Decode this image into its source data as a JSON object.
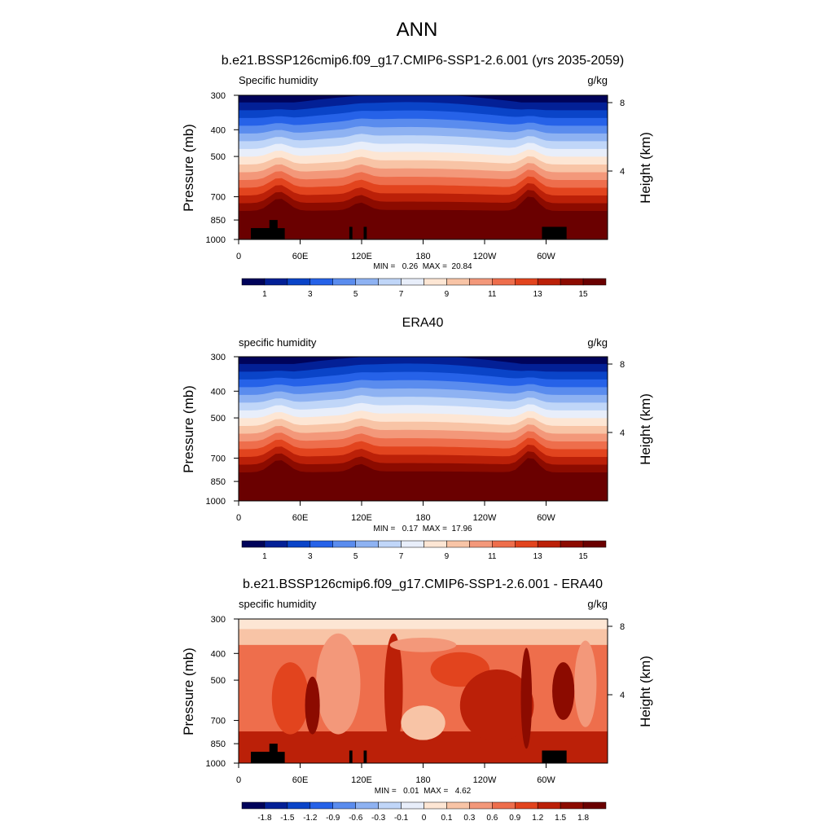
{
  "figure": {
    "title": "ANN"
  },
  "chart_data": [
    {
      "type": "heatmap",
      "title": "b.e21.BSSP126cmip6.f09_g17.CMIP6-SSP1-2.6.001 (yrs 2035-2059)",
      "variable_label": "Specific humidity",
      "units": "g/kg",
      "ylabel": "Pressure (mb)",
      "ylabel_right": "Height (km)",
      "x_ticks": [
        "0",
        "60E",
        "120E",
        "180",
        "120W",
        "60W"
      ],
      "x_tick_values": [
        0,
        60,
        120,
        180,
        240,
        300
      ],
      "xlim": [
        0,
        360
      ],
      "y_ticks": [
        "300",
        "400",
        "500",
        "700",
        "850",
        "1000"
      ],
      "y_tick_values": [
        300,
        400,
        500,
        700,
        850,
        1000
      ],
      "ylim": [
        1000,
        300
      ],
      "y_scale": "log",
      "height_ticks": [
        "8",
        "4"
      ],
      "height_tick_values": [
        8,
        4
      ],
      "stats": "MIN =   0.26  MAX =  20.84",
      "min": 0.26,
      "max": 20.84,
      "colorbar_labels": [
        "1",
        "3",
        "5",
        "7",
        "9",
        "11",
        "13",
        "15"
      ],
      "colorbar_levels": [
        1,
        2,
        3,
        4,
        5,
        6,
        7,
        8,
        9,
        10,
        11,
        12,
        13,
        14,
        15
      ],
      "colorbar_label_every": 2,
      "colormap": "blue-to-red"
    },
    {
      "type": "heatmap",
      "title": "ERA40",
      "variable_label": "specific humidity",
      "units": "g/kg",
      "ylabel": "Pressure (mb)",
      "ylabel_right": "Height (km)",
      "x_ticks": [
        "0",
        "60E",
        "120E",
        "180",
        "120W",
        "60W"
      ],
      "x_tick_values": [
        0,
        60,
        120,
        180,
        240,
        300
      ],
      "xlim": [
        0,
        360
      ],
      "y_ticks": [
        "300",
        "400",
        "500",
        "700",
        "850",
        "1000"
      ],
      "y_tick_values": [
        300,
        400,
        500,
        700,
        850,
        1000
      ],
      "ylim": [
        1000,
        300
      ],
      "y_scale": "log",
      "height_ticks": [
        "8",
        "4"
      ],
      "height_tick_values": [
        8,
        4
      ],
      "stats": "MIN =   0.17  MAX =  17.96",
      "min": 0.17,
      "max": 17.96,
      "colorbar_labels": [
        "1",
        "3",
        "5",
        "7",
        "9",
        "11",
        "13",
        "15"
      ],
      "colorbar_levels": [
        1,
        2,
        3,
        4,
        5,
        6,
        7,
        8,
        9,
        10,
        11,
        12,
        13,
        14,
        15
      ],
      "colorbar_label_every": 2,
      "colormap": "blue-to-red"
    },
    {
      "type": "heatmap",
      "title": "b.e21.BSSP126cmip6.f09_g17.CMIP6-SSP1-2.6.001 - ERA40",
      "variable_label": "specific humidity",
      "units": "g/kg",
      "ylabel": "Pressure (mb)",
      "ylabel_right": "Height (km)",
      "x_ticks": [
        "0",
        "60E",
        "120E",
        "180",
        "120W",
        "60W"
      ],
      "x_tick_values": [
        0,
        60,
        120,
        180,
        240,
        300
      ],
      "xlim": [
        0,
        360
      ],
      "y_ticks": [
        "300",
        "400",
        "500",
        "700",
        "850",
        "1000"
      ],
      "y_tick_values": [
        300,
        400,
        500,
        700,
        850,
        1000
      ],
      "ylim": [
        1000,
        300
      ],
      "y_scale": "log",
      "height_ticks": [
        "8",
        "4"
      ],
      "height_tick_values": [
        8,
        4
      ],
      "stats": "MIN =   0.01  MAX =   4.62",
      "min": 0.01,
      "max": 4.62,
      "colorbar_labels": [
        "-1.8",
        "-1.5",
        "-1.2",
        "-0.9",
        "-0.6",
        "-0.3",
        "-0.1",
        "0",
        "0.1",
        "0.3",
        "0.6",
        "0.9",
        "1.2",
        "1.5",
        "1.8"
      ],
      "colorbar_levels": [
        -1.8,
        -1.5,
        -1.2,
        -0.9,
        -0.6,
        -0.3,
        -0.1,
        0,
        0.1,
        0.3,
        0.6,
        0.9,
        1.2,
        1.5,
        1.8
      ],
      "colorbar_label_every": 1,
      "colormap": "blue-to-red diverging"
    }
  ],
  "colors": {
    "palette": [
      "#00035a",
      "#032096",
      "#0a44c8",
      "#2662e8",
      "#5a8cee",
      "#8eb2f2",
      "#c0d6f8",
      "#e8eefa",
      "#fde6d4",
      "#f8c4a6",
      "#f3987a",
      "#ee6e4c",
      "#e2441e",
      "#bb2008",
      "#8c0b00",
      "#6a0000"
    ],
    "terrain": "#000000"
  }
}
